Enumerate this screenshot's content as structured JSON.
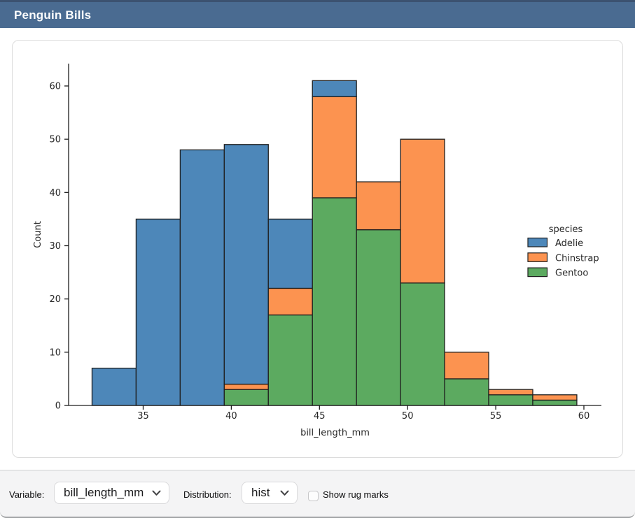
{
  "window": {
    "title": "Penguin Bills"
  },
  "chart_data": {
    "type": "bar",
    "variant": "stacked-histogram",
    "title": "",
    "xlabel": "bill_length_mm",
    "ylabel": "Count",
    "bin_edges": [
      32.1,
      34.6,
      37.1,
      39.6,
      42.1,
      44.6,
      47.1,
      49.6,
      52.1,
      54.6,
      57.1,
      59.6
    ],
    "series": [
      {
        "name": "Gentoo",
        "color": "#5caa60",
        "values": [
          0,
          0,
          0,
          3,
          17,
          39,
          33,
          23,
          5,
          2,
          1
        ]
      },
      {
        "name": "Chinstrap",
        "color": "#fc9350",
        "values": [
          0,
          0,
          0,
          1,
          5,
          19,
          9,
          27,
          5,
          1,
          1
        ]
      },
      {
        "name": "Adelie",
        "color": "#4d87b9",
        "values": [
          7,
          35,
          48,
          45,
          13,
          3,
          0,
          0,
          0,
          0,
          0
        ]
      }
    ],
    "bin_totals": [
      7,
      35,
      48,
      49,
      35,
      61,
      42,
      50,
      10,
      3,
      2
    ],
    "x_ticks": [
      35,
      40,
      45,
      50,
      55,
      60
    ],
    "y_ticks": [
      0,
      10,
      20,
      30,
      40,
      50,
      60
    ],
    "xlim": [
      31.4,
      60.5
    ],
    "ylim": [
      0,
      64
    ],
    "grid": false,
    "legend": {
      "title": "species",
      "entries": [
        "Adelie",
        "Chinstrap",
        "Gentoo"
      ],
      "position": "right"
    },
    "edge_color": "#1f1f1f"
  },
  "controls": {
    "variable_label": "Variable:",
    "variable_value": "bill_length_mm",
    "distribution_label": "Distribution:",
    "distribution_value": "hist",
    "rug_label": "Show rug marks",
    "rug_checked": false
  }
}
